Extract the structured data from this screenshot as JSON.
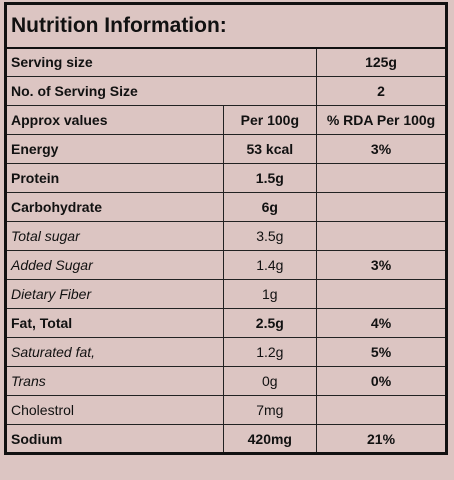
{
  "title": "Nutrition Information:",
  "serving": [
    [
      "Serving size",
      "125g"
    ],
    [
      "No. of Serving Size",
      "2"
    ]
  ],
  "header": [
    "Approx values",
    "Per 100g",
    "% RDA Per 100g"
  ],
  "rows": [
    [
      "Energy",
      "53 kcal",
      "3%"
    ],
    [
      "Protein",
      "1.5g"
    ],
    [
      "Carbohydrate",
      "6g"
    ],
    [
      "Total sugar",
      "3.5g"
    ],
    [
      "Added Sugar",
      "1.4g",
      "3%"
    ],
    [
      "Dietary Fiber",
      "1g"
    ],
    [
      "Fat, Total",
      "2.5g",
      "4%"
    ],
    [
      "Saturated fat,",
      "1.2g",
      "5%"
    ],
    [
      "Trans",
      "0g",
      "0%"
    ],
    [
      "Cholestrol",
      "7mg"
    ],
    [
      "Sodium",
      "420mg",
      "21%"
    ]
  ]
}
